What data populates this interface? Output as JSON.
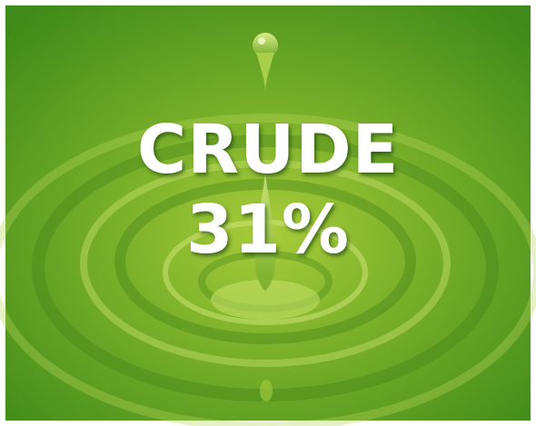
{
  "headline": "CRUDE",
  "figure": "31%"
}
